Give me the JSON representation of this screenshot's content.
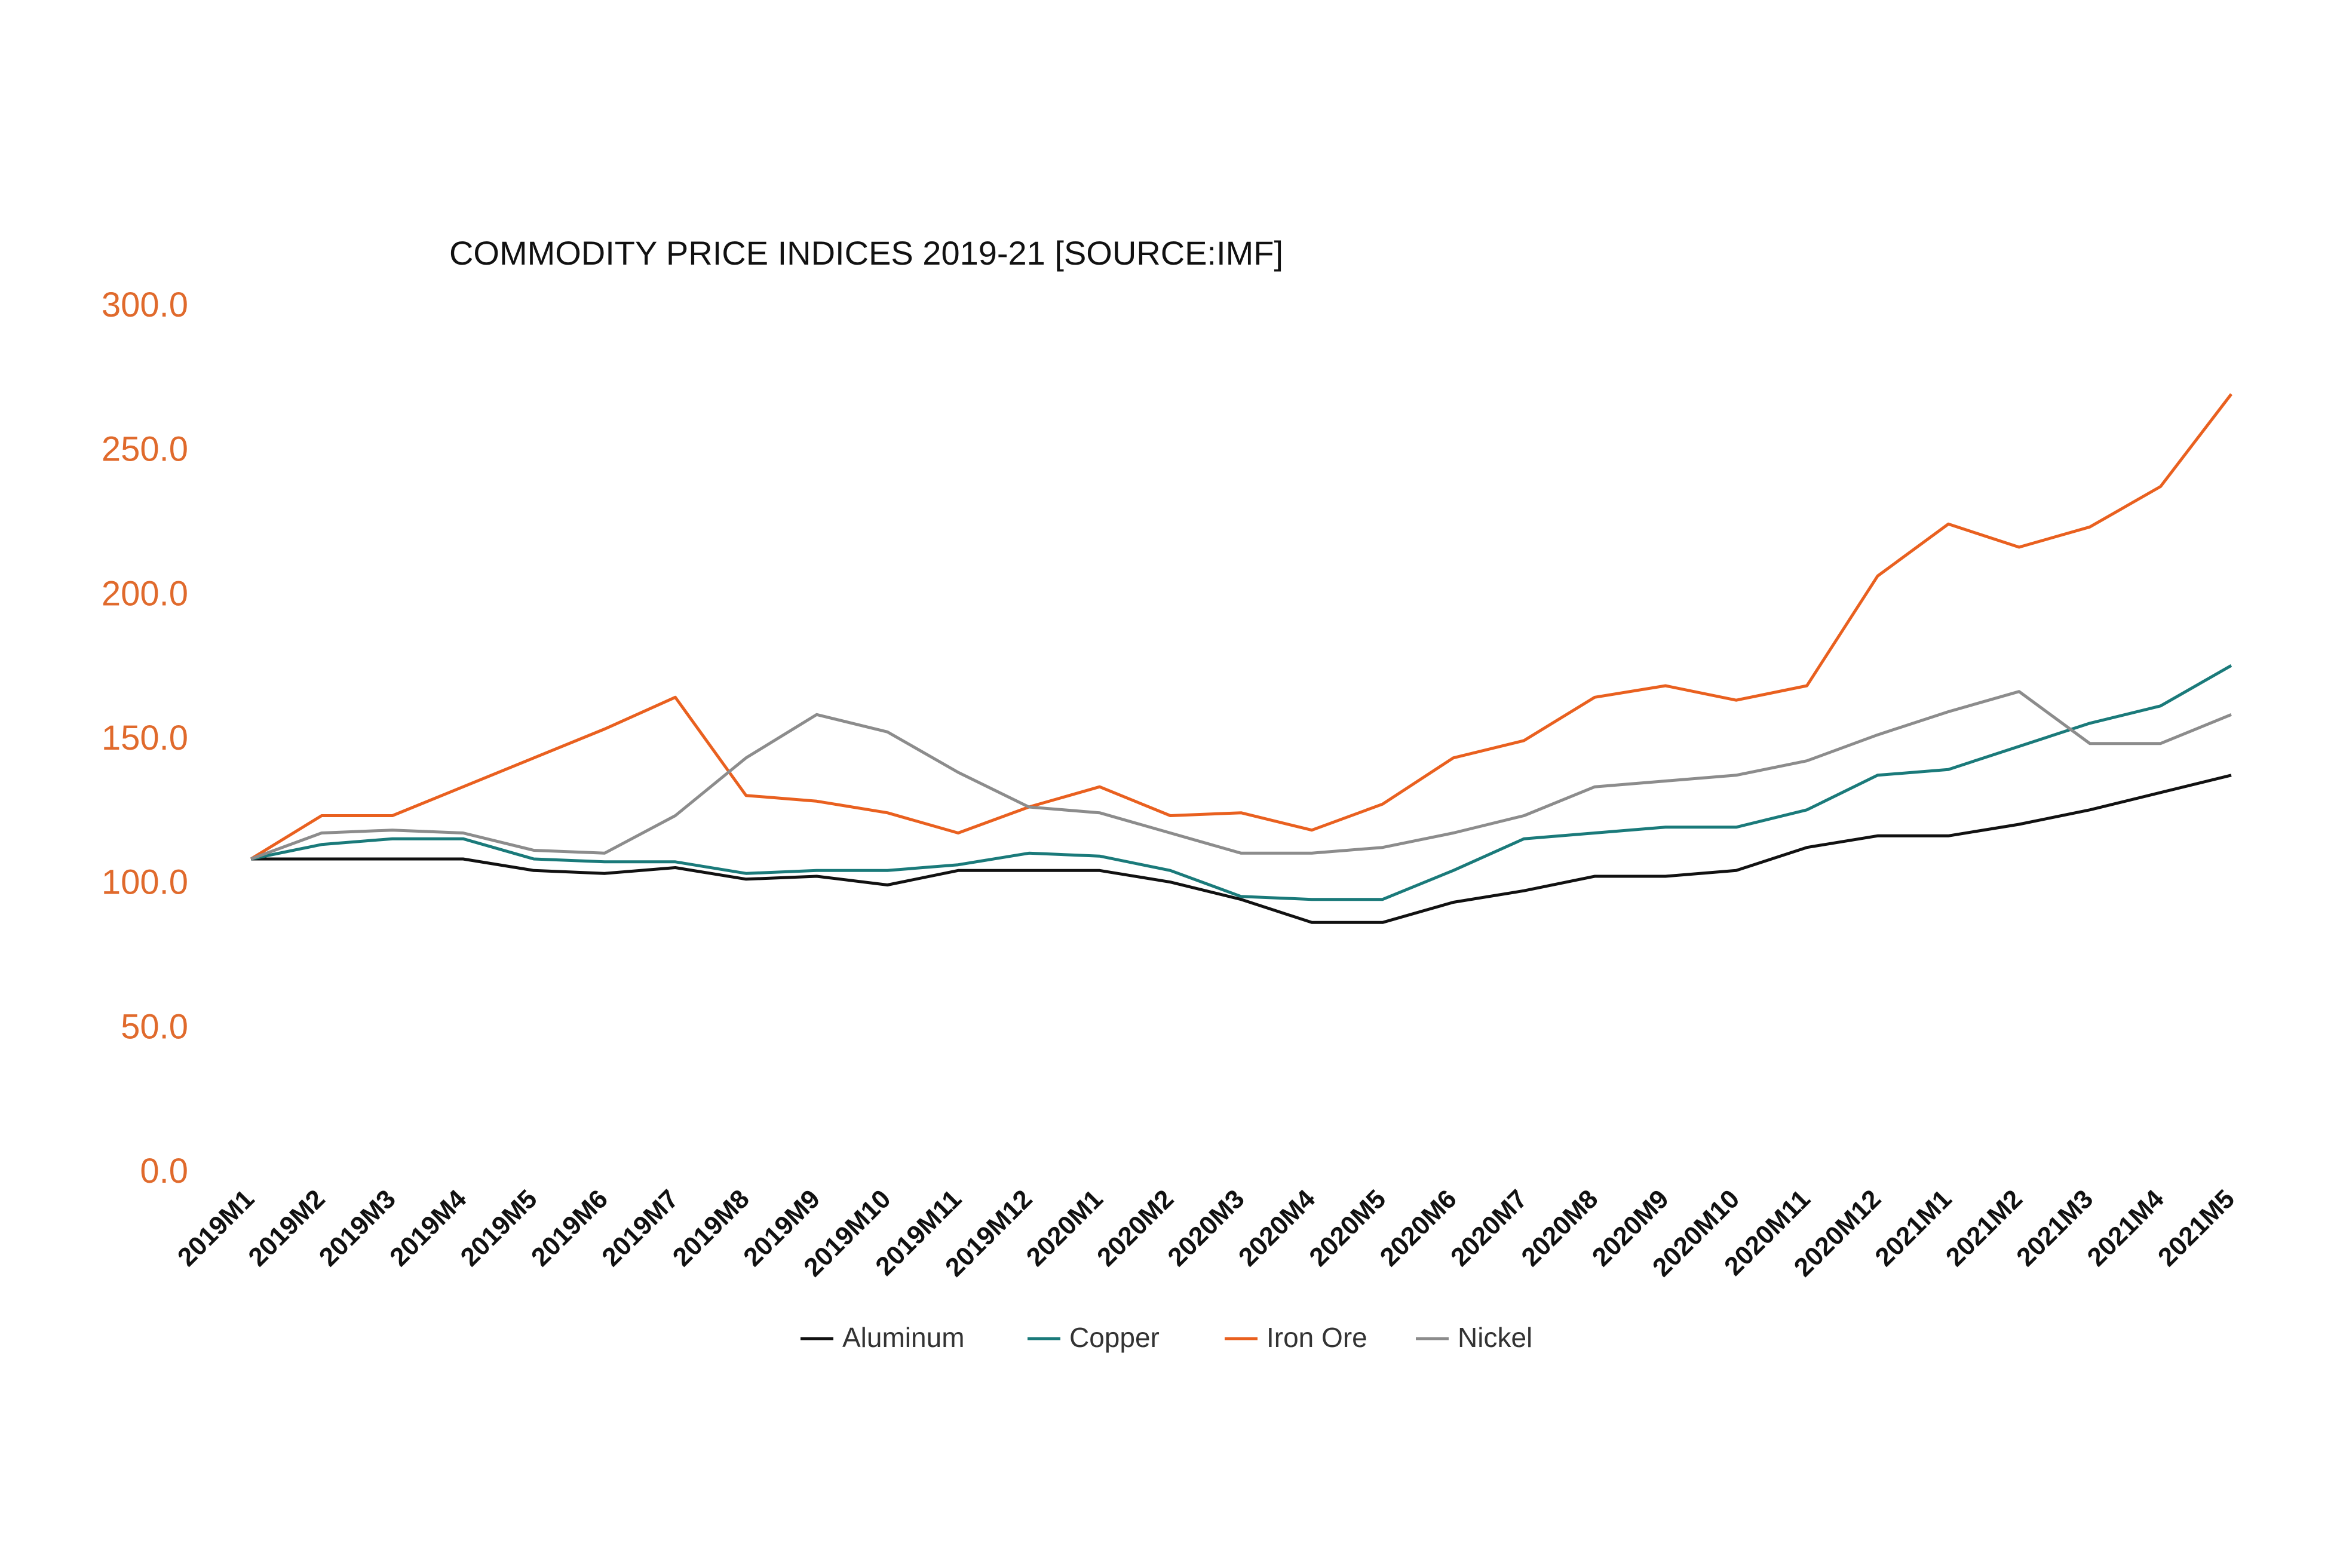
{
  "chart_data": {
    "type": "line",
    "title": "COMMODITY PRICE INDICES 2019-21 [SOURCE:IMF]",
    "xlabel": "",
    "ylabel": "",
    "ylim": [
      0,
      300
    ],
    "grid": false,
    "legend_position": "bottom",
    "y_ticks": [
      "0.0",
      "50.0",
      "100.0",
      "150.0",
      "200.0",
      "250.0",
      "300.0"
    ],
    "x": [
      "2019M1",
      "2019M2",
      "2019M3",
      "2019M4",
      "2019M5",
      "2019M6",
      "2019M7",
      "2019M8",
      "2019M9",
      "2019M10",
      "2019M11",
      "2019M12",
      "2020M1",
      "2020M2",
      "2020M3",
      "2020M4",
      "2020M5",
      "2020M6",
      "2020M7",
      "2020M8",
      "2020M9",
      "2020M10",
      "2020M11",
      "2020M12",
      "2021M1",
      "2021M2",
      "2021M3",
      "2021M4",
      "2021M5"
    ],
    "series": [
      {
        "name": "Aluminum",
        "color": "#111111",
        "values": [
          108,
          108,
          108,
          108,
          104,
          103,
          105,
          101,
          102,
          99,
          104,
          104,
          104,
          100,
          94,
          86,
          86,
          93,
          97,
          102,
          102,
          104,
          112,
          116,
          116,
          120,
          125,
          131,
          137
        ]
      },
      {
        "name": "Copper",
        "color": "#1a7a7a",
        "values": [
          108,
          113,
          115,
          115,
          108,
          107,
          107,
          103,
          104,
          104,
          106,
          110,
          109,
          104,
          95,
          94,
          94,
          104,
          115,
          117,
          119,
          119,
          125,
          137,
          139,
          147,
          155,
          161,
          175
        ]
      },
      {
        "name": "Iron Ore",
        "color": "#e9601f",
        "values": [
          108,
          123,
          123,
          133,
          143,
          153,
          164,
          130,
          128,
          124,
          117,
          126,
          133,
          123,
          124,
          118,
          127,
          143,
          149,
          164,
          168,
          163,
          168,
          206,
          224,
          216,
          223,
          237,
          269
        ]
      },
      {
        "name": "Nickel",
        "color": "#8c8c8c",
        "values": [
          108,
          117,
          118,
          117,
          111,
          110,
          123,
          143,
          158,
          152,
          138,
          126,
          124,
          117,
          110,
          110,
          112,
          117,
          123,
          133,
          135,
          137,
          142,
          151,
          159,
          166,
          148,
          148,
          158
        ]
      }
    ]
  },
  "colors": {
    "axis_tick_text": "#e06a2c",
    "background": "#ffffff"
  }
}
